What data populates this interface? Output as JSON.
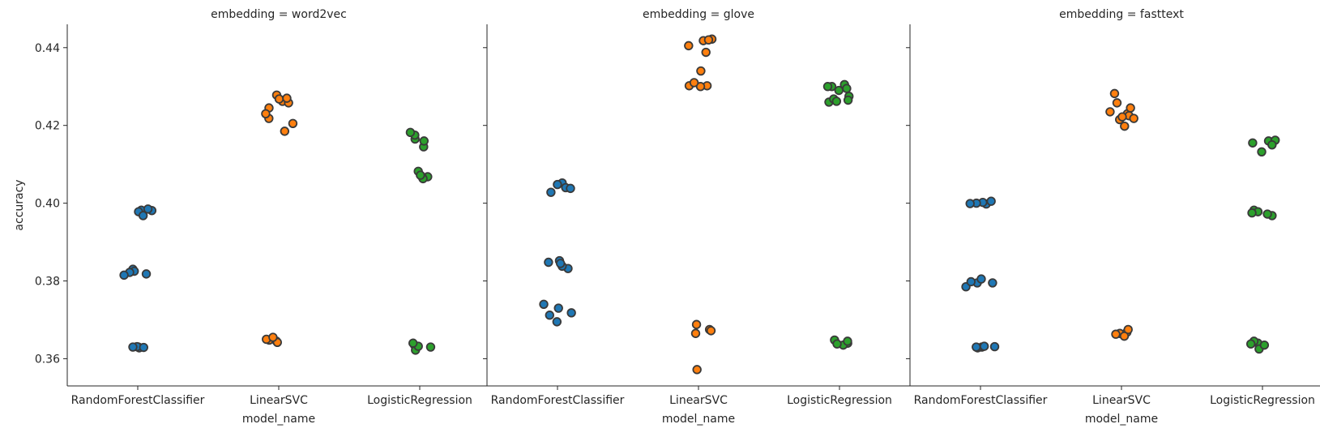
{
  "chart_data": {
    "type": "scatter",
    "kind": "strip",
    "facet_prefix": "embedding = ",
    "xlabel": "model_name",
    "ylabel": "accuracy",
    "categories": [
      "RandomForestClassifier",
      "LinearSVC",
      "LogisticRegression"
    ],
    "category_colors": {
      "RandomForestClassifier": "#1f77b4",
      "LinearSVC": "#ff7f0e",
      "LogisticRegression": "#2ca02c"
    },
    "point_edge_color": "#3a3a3a",
    "ylim": [
      0.353,
      0.446
    ],
    "yticks": [
      0.36,
      0.38,
      0.4,
      0.42,
      0.44
    ],
    "ytick_labels": [
      "0.36",
      "0.38",
      "0.40",
      "0.42",
      "0.44"
    ],
    "grid": false,
    "panels": [
      {
        "title": "embedding = word2vec",
        "points": {
          "RandomForestClassifier": [
            0.3982,
            0.3981,
            0.3978,
            0.3968,
            0.3985,
            0.383,
            0.3825,
            0.3818,
            0.3822,
            0.3815,
            0.363,
            0.3628,
            0.3631,
            0.3629,
            0.363
          ],
          "LinearSVC": [
            0.4262,
            0.4218,
            0.4278,
            0.4245,
            0.4268,
            0.423,
            0.4205,
            0.4185,
            0.4258,
            0.427,
            0.3645,
            0.3642,
            0.3648,
            0.365,
            0.3655
          ],
          "LogisticRegression": [
            0.4145,
            0.4165,
            0.4175,
            0.416,
            0.4182,
            0.4068,
            0.4067,
            0.4063,
            0.4082,
            0.4072,
            0.3635,
            0.3622,
            0.363,
            0.3632,
            0.364
          ]
        }
      },
      {
        "title": "embedding = glove",
        "points": {
          "RandomForestClassifier": [
            0.4052,
            0.404,
            0.4038,
            0.4028,
            0.4048,
            0.3832,
            0.3848,
            0.3838,
            0.3852,
            0.3845,
            0.373,
            0.3718,
            0.3712,
            0.374,
            0.3695
          ],
          "LinearSVC": [
            0.4418,
            0.4422,
            0.442,
            0.4388,
            0.4405,
            0.434,
            0.4302,
            0.43,
            0.4302,
            0.431,
            0.3688,
            0.3675,
            0.3672,
            0.3665,
            0.3572
          ],
          "LogisticRegression": [
            0.4305,
            0.426,
            0.4295,
            0.43,
            0.4275,
            0.4268,
            0.4262,
            0.429,
            0.4265,
            0.43,
            0.3648,
            0.364,
            0.3635,
            0.3645,
            0.3638
          ]
        }
      },
      {
        "title": "embedding = fasttext",
        "points": {
          "RandomForestClassifier": [
            0.3998,
            0.4002,
            0.4,
            0.4005,
            0.3999,
            0.3795,
            0.3785,
            0.3805,
            0.3795,
            0.3798,
            0.363,
            0.3628,
            0.3631,
            0.363,
            0.3632
          ],
          "LinearSVC": [
            0.423,
            0.4225,
            0.4282,
            0.4258,
            0.4245,
            0.4235,
            0.4198,
            0.4215,
            0.4222,
            0.4218,
            0.3665,
            0.3663,
            0.3668,
            0.3675,
            0.3658
          ],
          "LogisticRegression": [
            0.416,
            0.4162,
            0.4155,
            0.415,
            0.4132,
            0.3968,
            0.3982,
            0.3978,
            0.3975,
            0.3972,
            0.364,
            0.3645,
            0.3625,
            0.3638,
            0.3635
          ]
        }
      }
    ]
  }
}
